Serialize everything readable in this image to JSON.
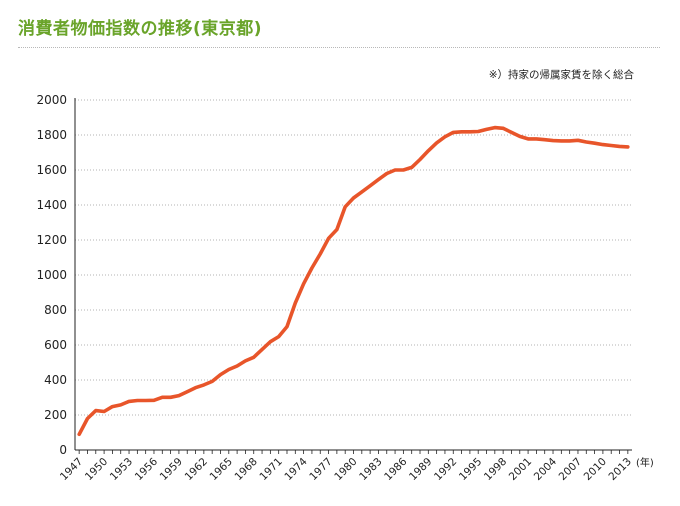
{
  "header": {
    "title": "消費者物価指数の推移(東京都)",
    "note": "※）持家の帰属家賃を除く総合"
  },
  "chart_data": {
    "type": "line",
    "title": "消費者物価指数の推移(東京都)",
    "xlabel": "(年)",
    "ylabel": "",
    "ylim": [
      0,
      2000
    ],
    "yticks": [
      0,
      200,
      400,
      600,
      800,
      1000,
      1200,
      1400,
      1600,
      1800,
      2000
    ],
    "xticks": [
      1947,
      1950,
      1953,
      1956,
      1959,
      1962,
      1965,
      1968,
      1971,
      1974,
      1977,
      1980,
      1983,
      1986,
      1989,
      1992,
      1995,
      1998,
      2001,
      2004,
      2007,
      2010,
      2013
    ],
    "xlim": [
      1946.5,
      2013.5
    ],
    "grid": true,
    "line_color": "#e8552a",
    "series": [
      {
        "x": [
          1947,
          1948,
          1949,
          1950,
          1951,
          1952,
          1953,
          1954,
          1955,
          1956,
          1957,
          1958,
          1959,
          1960,
          1961,
          1962,
          1963,
          1964,
          1965,
          1966,
          1967,
          1968,
          1969,
          1970,
          1971,
          1972,
          1973,
          1974,
          1975,
          1976,
          1977,
          1978,
          1979,
          1980,
          1981,
          1982,
          1983,
          1984,
          1985,
          1986,
          1987,
          1988,
          1989,
          1990,
          1991,
          1992,
          1993,
          1994,
          1995,
          1996,
          1997,
          1998,
          1999,
          2000,
          2001,
          2002,
          2003,
          2004,
          2005,
          2006,
          2007,
          2008,
          2009,
          2010,
          2011,
          2012,
          2013
        ],
        "values": [
          90,
          180,
          225,
          220,
          248,
          258,
          278,
          283,
          283,
          284,
          301,
          301,
          311,
          333,
          356,
          372,
          392,
          431,
          460,
          480,
          509,
          530,
          575,
          619,
          648,
          705,
          840,
          950,
          1040,
          1120,
          1210,
          1260,
          1390,
          1440,
          1475,
          1510,
          1545,
          1580,
          1600,
          1600,
          1615,
          1660,
          1710,
          1755,
          1790,
          1815,
          1818,
          1818,
          1820,
          1832,
          1842,
          1838,
          1815,
          1792,
          1778,
          1778,
          1773,
          1768,
          1766,
          1766,
          1770,
          1760,
          1753,
          1745,
          1740,
          1735,
          1732
        ]
      }
    ]
  }
}
